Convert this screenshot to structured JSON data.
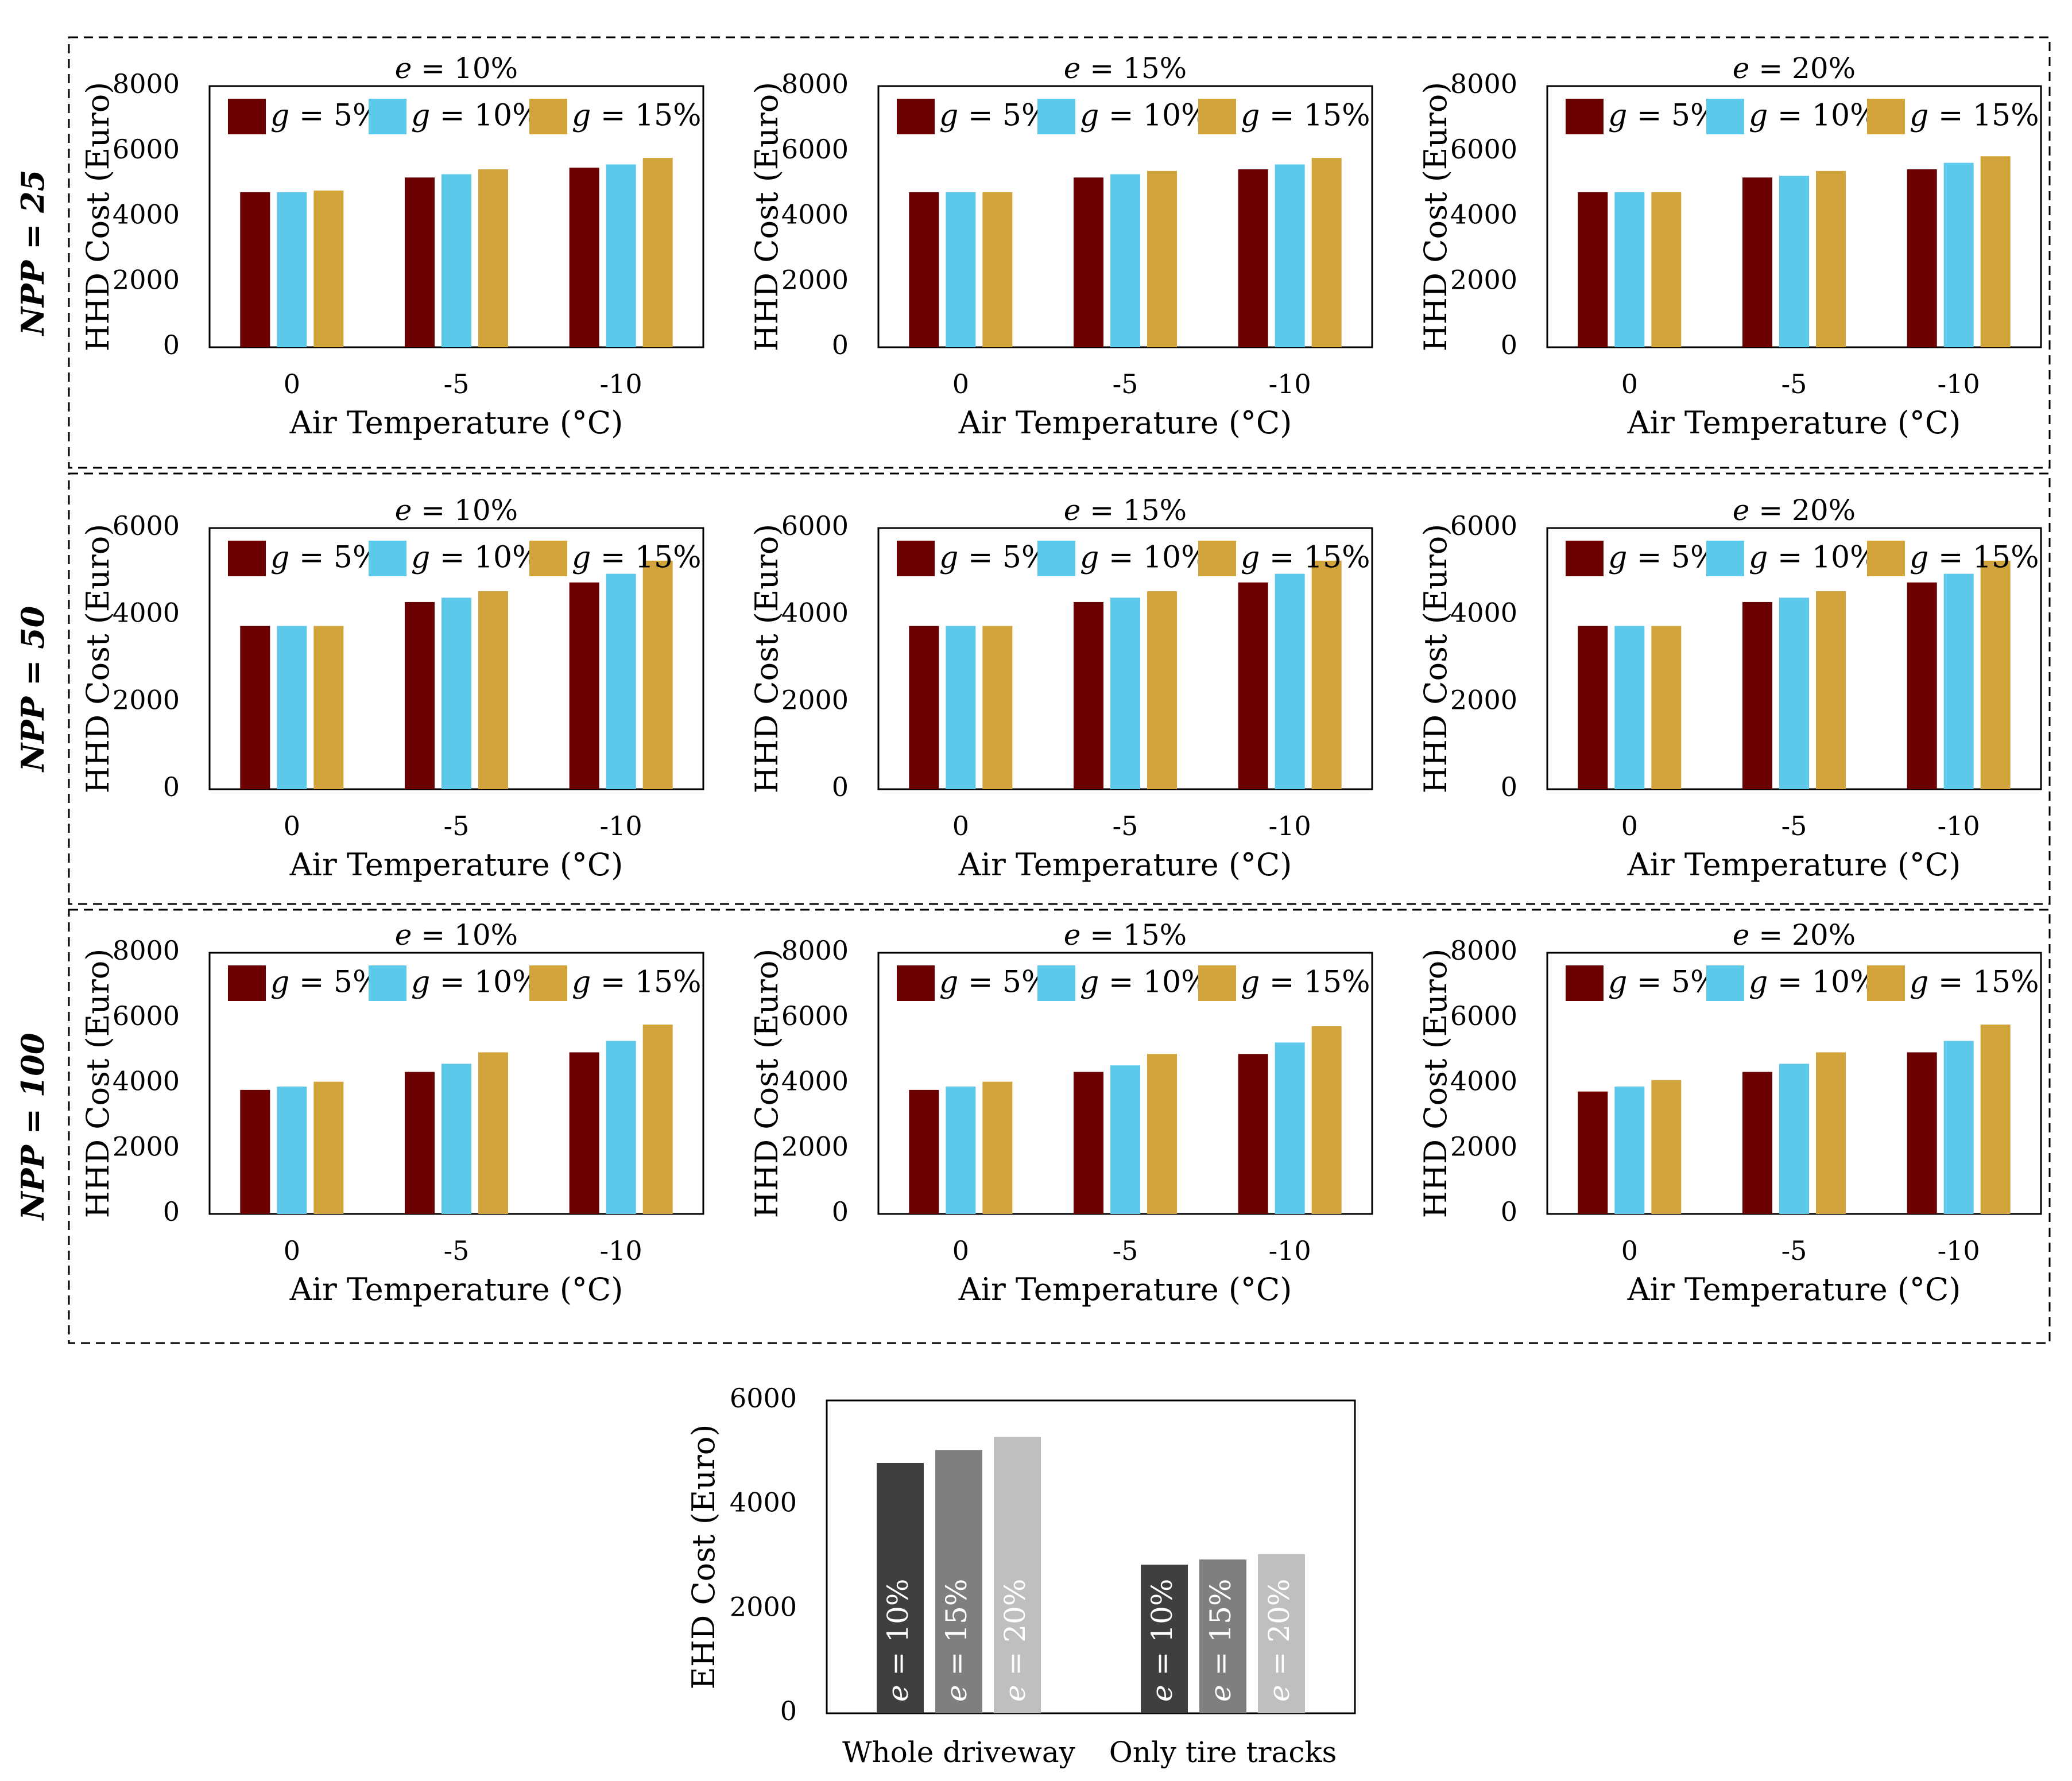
{
  "colors": {
    "g5": "#6b0000",
    "g10": "#5cc8ea",
    "g15": "#d2a53c",
    "e10": "#3f3f3f",
    "e15": "#7f7f7f",
    "e20": "#bfbfbf"
  },
  "chart_data": [
    {
      "type": "bar",
      "group": "NPP = 25",
      "panels": [
        {
          "title": "e = 10%",
          "xlabel": "Air Temperature (°C)",
          "ylabel": "HHD Cost (Euro)",
          "ylim": [
            0,
            8000
          ],
          "yticks": [
            "0",
            "2000",
            "4000",
            "6000",
            "8000"
          ],
          "categories": [
            "0",
            "-5",
            "-10"
          ],
          "series": [
            {
              "name": "g = 5%",
              "values": [
                4750,
                5200,
                5500
              ]
            },
            {
              "name": "g = 10%",
              "values": [
                4750,
                5300,
                5600
              ]
            },
            {
              "name": "g = 15%",
              "values": [
                4800,
                5450,
                5800
              ]
            }
          ]
        },
        {
          "title": "e = 15%",
          "xlabel": "Air Temperature (°C)",
          "ylabel": "HHD Cost (Euro)",
          "ylim": [
            0,
            8000
          ],
          "yticks": [
            "0",
            "2000",
            "4000",
            "6000",
            "8000"
          ],
          "categories": [
            "0",
            "-5",
            "-10"
          ],
          "series": [
            {
              "name": "g = 5%",
              "values": [
                4750,
                5200,
                5450
              ]
            },
            {
              "name": "g = 10%",
              "values": [
                4750,
                5300,
                5600
              ]
            },
            {
              "name": "g = 15%",
              "values": [
                4750,
                5400,
                5800
              ]
            }
          ]
        },
        {
          "title": "e = 20%",
          "xlabel": "Air Temperature (°C)",
          "ylabel": "HHD Cost (Euro)",
          "ylim": [
            0,
            8000
          ],
          "yticks": [
            "0",
            "2000",
            "4000",
            "6000",
            "8000"
          ],
          "categories": [
            "0",
            "-5",
            "-10"
          ],
          "series": [
            {
              "name": "g = 5%",
              "values": [
                4750,
                5200,
                5450
              ]
            },
            {
              "name": "g = 10%",
              "values": [
                4750,
                5250,
                5650
              ]
            },
            {
              "name": "g = 15%",
              "values": [
                4750,
                5400,
                5850
              ]
            }
          ]
        }
      ]
    },
    {
      "type": "bar",
      "group": "NPP = 50",
      "panels": [
        {
          "title": "e = 10%",
          "xlabel": "Air Temperature (°C)",
          "ylabel": "HHD Cost (Euro)",
          "ylim": [
            0,
            6000
          ],
          "yticks": [
            "0",
            "2000",
            "4000",
            "6000"
          ],
          "categories": [
            "0",
            "-5",
            "-10"
          ],
          "series": [
            {
              "name": "g = 5%",
              "values": [
                3750,
                4300,
                4750
              ]
            },
            {
              "name": "g = 10%",
              "values": [
                3750,
                4400,
                4950
              ]
            },
            {
              "name": "g = 15%",
              "values": [
                3750,
                4550,
                5250
              ]
            }
          ]
        },
        {
          "title": "e = 15%",
          "xlabel": "Air Temperature (°C)",
          "ylabel": "HHD Cost (Euro)",
          "ylim": [
            0,
            6000
          ],
          "yticks": [
            "0",
            "2000",
            "4000",
            "6000"
          ],
          "categories": [
            "0",
            "-5",
            "-10"
          ],
          "series": [
            {
              "name": "g = 5%",
              "values": [
                3750,
                4300,
                4750
              ]
            },
            {
              "name": "g = 10%",
              "values": [
                3750,
                4400,
                4950
              ]
            },
            {
              "name": "g = 15%",
              "values": [
                3750,
                4550,
                5250
              ]
            }
          ]
        },
        {
          "title": "e = 20%",
          "xlabel": "Air Temperature (°C)",
          "ylabel": "HHD Cost (Euro)",
          "ylim": [
            0,
            6000
          ],
          "yticks": [
            "0",
            "2000",
            "4000",
            "6000"
          ],
          "categories": [
            "0",
            "-5",
            "-10"
          ],
          "series": [
            {
              "name": "g = 5%",
              "values": [
                3750,
                4300,
                4750
              ]
            },
            {
              "name": "g = 10%",
              "values": [
                3750,
                4400,
                4950
              ]
            },
            {
              "name": "g = 15%",
              "values": [
                3750,
                4550,
                5250
              ]
            }
          ]
        }
      ]
    },
    {
      "type": "bar",
      "group": "NPP = 100",
      "panels": [
        {
          "title": "e = 10%",
          "xlabel": "Air Temperature (°C)",
          "ylabel": "HHD Cost (Euro)",
          "ylim": [
            0,
            8000
          ],
          "yticks": [
            "0",
            "2000",
            "4000",
            "6000",
            "8000"
          ],
          "categories": [
            "0",
            "-5",
            "-10"
          ],
          "series": [
            {
              "name": "g = 5%",
              "values": [
                3800,
                4350,
                4950
              ]
            },
            {
              "name": "g = 10%",
              "values": [
                3900,
                4600,
                5300
              ]
            },
            {
              "name": "g = 15%",
              "values": [
                4050,
                4950,
                5800
              ]
            }
          ]
        },
        {
          "title": "e = 15%",
          "xlabel": "Air Temperature (°C)",
          "ylabel": "HHD Cost (Euro)",
          "ylim": [
            0,
            8000
          ],
          "yticks": [
            "0",
            "2000",
            "4000",
            "6000",
            "8000"
          ],
          "categories": [
            "0",
            "-5",
            "-10"
          ],
          "series": [
            {
              "name": "g = 5%",
              "values": [
                3800,
                4350,
                4900
              ]
            },
            {
              "name": "g = 10%",
              "values": [
                3900,
                4550,
                5250
              ]
            },
            {
              "name": "g = 15%",
              "values": [
                4050,
                4900,
                5750
              ]
            }
          ]
        },
        {
          "title": "e = 20%",
          "xlabel": "Air Temperature (°C)",
          "ylabel": "HHD Cost (Euro)",
          "ylim": [
            0,
            8000
          ],
          "yticks": [
            "0",
            "2000",
            "4000",
            "6000",
            "8000"
          ],
          "categories": [
            "0",
            "-5",
            "-10"
          ],
          "series": [
            {
              "name": "g = 5%",
              "values": [
                3750,
                4350,
                4950
              ]
            },
            {
              "name": "g = 10%",
              "values": [
                3900,
                4600,
                5300
              ]
            },
            {
              "name": "g = 15%",
              "values": [
                4100,
                4950,
                5800
              ]
            }
          ]
        }
      ]
    },
    {
      "type": "bar",
      "ylabel": "EHD Cost (Euro)",
      "ylim": [
        0,
        6000
      ],
      "yticks": [
        "0",
        "2000",
        "4000",
        "6000"
      ],
      "categories": [
        "Whole driveway",
        "Only tire tracks"
      ],
      "series": [
        {
          "name": "e = 10%",
          "values": [
            4800,
            2850
          ]
        },
        {
          "name": "e = 15%",
          "values": [
            5050,
            2950
          ]
        },
        {
          "name": "e = 20%",
          "values": [
            5300,
            3050
          ]
        }
      ]
    }
  ]
}
